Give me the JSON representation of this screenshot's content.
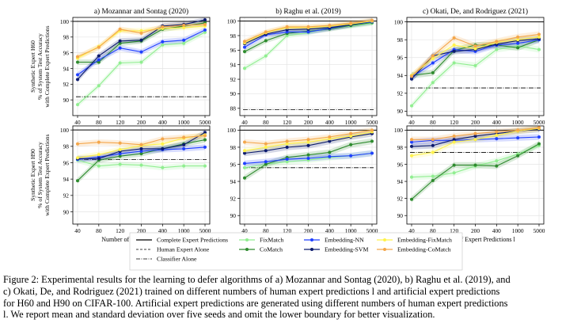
{
  "colors": {
    "complete": "#000000",
    "human": "#000000",
    "classifier": "#000000",
    "FixMatch": "#90ee90",
    "CoMatch": "#2e8b2e",
    "Embedding-NN": "#1f3fff",
    "Embedding-SVM": "#0b1a6e",
    "Embedding-FixMatch": "#fff24a",
    "Embedding-CoMatch": "#f4a64a"
  },
  "legend": {
    "placement": "bottom-center",
    "entries": [
      {
        "key": "complete",
        "label": "Complete Expert Predictions",
        "style": "solid"
      },
      {
        "key": "human",
        "label": "Human Expert Alone",
        "style": "dashed"
      },
      {
        "key": "classifier",
        "label": "Classifier Alone",
        "style": "dashdot"
      },
      {
        "key": "FixMatch",
        "label": "FixMatch",
        "style": "marker"
      },
      {
        "key": "CoMatch",
        "label": "CoMatch",
        "style": "marker"
      },
      {
        "key": "Embedding-NN",
        "label": "Embedding-NN",
        "style": "marker"
      },
      {
        "key": "Embedding-SVM",
        "label": "Embedding-SVM",
        "style": "marker"
      },
      {
        "key": "Embedding-FixMatch",
        "label": "Embedding-FixMatch",
        "style": "marker"
      },
      {
        "key": "Embedding-CoMatch",
        "label": "Embedding-CoMatch",
        "style": "marker"
      }
    ]
  },
  "xlabel": "Number of Expert Predictions l",
  "row_ylabels": [
    [
      "Synthetic Expert H60",
      "% of System Test Accuracy",
      "with Complete Expert Predictions"
    ],
    [
      "Synthetic Expert H90",
      "% of System Test Accuracy",
      "with Complete Expert Predictions"
    ]
  ],
  "caption": {
    "lines": [
      "Figure 2: Experimental results for the learning to defer algorithms of a) Mozannar and Sontag (2020), b) Raghu et al. (2019), and",
      "c) Okati, De, and Rodriguez (2021) trained on different numbers of human expert predictions l and artificial expert predictions",
      "for H60 and H90 on CIFAR-100. Artificial expert predictions are generated using different numbers of human expert predictions",
      "l. We report mean and standard deviation over five seeds and omit the lower boundary for better visualization."
    ]
  },
  "chart_data": [
    {
      "type": "line",
      "title": "a) Mozannar and Sontag (2020)",
      "categories": [
        "40",
        "80",
        "120",
        "200",
        "400",
        "1000",
        "5000"
      ],
      "ylim": [
        88,
        100.5
      ],
      "yticks": [
        90,
        92,
        94,
        96,
        98,
        100
      ],
      "complete": 100,
      "human": 90.4,
      "grid": true,
      "series": [
        {
          "key": "FixMatch",
          "values": [
            89.4,
            91.8,
            94.7,
            94.8,
            97.0,
            97.2,
            98.6
          ]
        },
        {
          "key": "CoMatch",
          "values": [
            94.8,
            94.8,
            97.2,
            97.5,
            99.0,
            99.4,
            99.8
          ]
        },
        {
          "key": "Embedding-NN",
          "values": [
            93.2,
            95.1,
            96.6,
            96.1,
            97.4,
            97.6,
            98.9
          ]
        },
        {
          "key": "Embedding-SVM",
          "values": [
            92.6,
            95.6,
            97.5,
            97.6,
            99.4,
            99.6,
            100.2
          ]
        },
        {
          "key": "Embedding-FixMatch",
          "values": [
            95.3,
            96.8,
            98.8,
            98.8,
            99.1,
            99.2,
            99.4
          ]
        },
        {
          "key": "Embedding-CoMatch",
          "values": [
            95.5,
            96.7,
            99.0,
            98.5,
            99.3,
            99.5,
            99.6
          ]
        }
      ]
    },
    {
      "type": "line",
      "title": "b) Raghu et al. (2019)",
      "categories": [
        "40",
        "80",
        "120",
        "200",
        "400",
        "1000",
        "5000"
      ],
      "ylim": [
        87,
        100.5
      ],
      "yticks": [
        88,
        90,
        92,
        94,
        96,
        98,
        100
      ],
      "complete": 100,
      "human": 87.8,
      "grid": true,
      "series": [
        {
          "key": "FixMatch",
          "values": [
            93.5,
            95.2,
            98.0,
            98.4,
            99.1,
            99.3,
            99.7
          ]
        },
        {
          "key": "CoMatch",
          "values": [
            95.8,
            97.3,
            98.3,
            98.6,
            98.9,
            99.4,
            99.8
          ]
        },
        {
          "key": "Embedding-NN",
          "values": [
            96.4,
            98.1,
            98.5,
            98.5,
            99.0,
            99.5,
            99.9
          ]
        },
        {
          "key": "Embedding-SVM",
          "values": [
            96.9,
            98.2,
            98.8,
            98.9,
            99.1,
            99.5,
            100.0
          ]
        },
        {
          "key": "Embedding-FixMatch",
          "values": [
            97.0,
            98.4,
            99.1,
            99.1,
            99.3,
            99.6,
            100.0
          ]
        },
        {
          "key": "Embedding-CoMatch",
          "values": [
            97.2,
            98.5,
            99.2,
            99.2,
            99.4,
            99.7,
            100.1
          ]
        }
      ]
    },
    {
      "type": "line",
      "title": "c) Okati, De, and Rodriguez (2021)",
      "categories": [
        "40",
        "80",
        "120",
        "200",
        "400",
        "1000",
        "5000"
      ],
      "ylim": [
        89.5,
        100.5
      ],
      "yticks": [
        90,
        92,
        94,
        96,
        98,
        100
      ],
      "complete": 100,
      "human": 92.6,
      "grid": true,
      "series": [
        {
          "key": "FixMatch",
          "values": [
            90.6,
            93.2,
            95.4,
            95.1,
            96.9,
            97.3,
            96.9
          ]
        },
        {
          "key": "CoMatch",
          "values": [
            94.0,
            94.3,
            96.8,
            97.4,
            97.4,
            97.1,
            98.0
          ]
        },
        {
          "key": "Embedding-NN",
          "values": [
            93.8,
            95.4,
            96.9,
            96.7,
            97.4,
            97.6,
            98.0
          ]
        },
        {
          "key": "Embedding-SVM",
          "values": [
            93.6,
            96.2,
            96.7,
            96.9,
            97.5,
            97.9,
            98.1
          ]
        },
        {
          "key": "Embedding-FixMatch",
          "values": [
            94.0,
            95.9,
            97.4,
            97.0,
            97.7,
            98.0,
            98.3
          ]
        },
        {
          "key": "Embedding-CoMatch",
          "values": [
            93.9,
            96.2,
            98.2,
            97.3,
            97.8,
            98.3,
            98.6
          ]
        }
      ]
    },
    {
      "type": "line",
      "title": "",
      "categories": [
        "40",
        "80",
        "120",
        "200",
        "400",
        "1000",
        "5000"
      ],
      "ylim": [
        88.5,
        100.5
      ],
      "yticks": [
        90,
        92,
        94,
        96,
        98,
        100
      ],
      "complete": 100,
      "human": 96.4,
      "grid": true,
      "series": [
        {
          "key": "FixMatch",
          "values": [
            96.3,
            95.6,
            95.8,
            95.7,
            95.4,
            95.6,
            95.6
          ]
        },
        {
          "key": "CoMatch",
          "values": [
            93.8,
            96.3,
            96.8,
            97.1,
            97.7,
            98.3,
            98.8
          ]
        },
        {
          "key": "Embedding-NN",
          "values": [
            96.4,
            96.7,
            97.1,
            97.4,
            97.6,
            97.7,
            97.9
          ]
        },
        {
          "key": "Embedding-SVM",
          "values": [
            96.5,
            96.5,
            97.4,
            97.7,
            97.7,
            98.2,
            99.7
          ]
        },
        {
          "key": "Embedding-FixMatch",
          "values": [
            96.6,
            97.0,
            97.6,
            98.1,
            98.3,
            99.0,
            99.4
          ]
        },
        {
          "key": "Embedding-CoMatch",
          "values": [
            98.3,
            98.5,
            98.4,
            98.2,
            98.9,
            99.1,
            99.3
          ]
        }
      ]
    },
    {
      "type": "line",
      "title": "",
      "categories": [
        "40",
        "80",
        "120",
        "200",
        "400",
        "1000",
        "5000"
      ],
      "ylim": [
        89,
        100.5
      ],
      "yticks": [
        90,
        92,
        94,
        96,
        98,
        100
      ],
      "complete": 100,
      "human": 95.6,
      "grid": true,
      "series": [
        {
          "key": "FixMatch",
          "values": [
            95.6,
            96.0,
            96.3,
            96.5,
            96.8,
            97.0,
            97.3
          ]
        },
        {
          "key": "CoMatch",
          "values": [
            94.4,
            96.0,
            96.8,
            97.1,
            97.4,
            98.3,
            98.7
          ]
        },
        {
          "key": "Embedding-NN",
          "values": [
            96.1,
            96.3,
            96.6,
            96.7,
            96.9,
            97.0,
            97.3
          ]
        },
        {
          "key": "Embedding-SVM",
          "values": [
            97.3,
            97.6,
            98.0,
            98.2,
            98.7,
            99.2,
            99.6
          ]
        },
        {
          "key": "Embedding-FixMatch",
          "values": [
            97.6,
            98.0,
            98.4,
            98.6,
            99.0,
            99.3,
            99.8
          ]
        },
        {
          "key": "Embedding-CoMatch",
          "values": [
            98.6,
            98.4,
            98.7,
            98.9,
            99.2,
            99.6,
            100.0
          ]
        }
      ]
    },
    {
      "type": "line",
      "title": "",
      "categories": [
        "40",
        "80",
        "120",
        "200",
        "400",
        "1000",
        "5000"
      ],
      "ylim": [
        89,
        100.5
      ],
      "yticks": [
        90,
        92,
        94,
        96,
        98,
        100
      ],
      "complete": 100,
      "human": 97.4,
      "grid": true,
      "series": [
        {
          "key": "FixMatch",
          "values": [
            94.5,
            94.6,
            95.0,
            95.8,
            96.4,
            97.2,
            98.2
          ]
        },
        {
          "key": "CoMatch",
          "values": [
            91.9,
            94.1,
            95.9,
            95.9,
            95.8,
            97.0,
            98.4
          ]
        },
        {
          "key": "Embedding-NN",
          "values": [
            98.6,
            98.8,
            98.8,
            98.9,
            99.0,
            99.1,
            99.2
          ]
        },
        {
          "key": "Embedding-SVM",
          "values": [
            98.1,
            98.2,
            98.9,
            99.3,
            99.6,
            99.9,
            100.1
          ]
        },
        {
          "key": "Embedding-FixMatch",
          "values": [
            97.0,
            97.4,
            98.6,
            98.9,
            99.4,
            99.9,
            100.2
          ]
        },
        {
          "key": "Embedding-CoMatch",
          "values": [
            98.9,
            98.9,
            99.3,
            99.6,
            99.8,
            100.0,
            100.3
          ]
        }
      ]
    }
  ]
}
